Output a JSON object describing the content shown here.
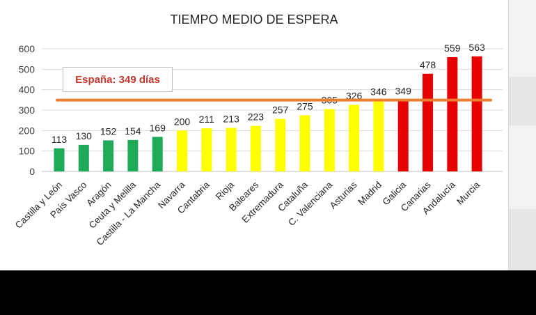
{
  "chart_data": {
    "type": "bar",
    "title": "TIEMPO MEDIO DE ESPERA",
    "xlabel": "",
    "ylabel": "",
    "ylim": [
      0,
      600
    ],
    "yticks": [
      0,
      100,
      200,
      300,
      400,
      500,
      600
    ],
    "grid": true,
    "categories": [
      "Castilla y León",
      "País Vasco",
      "Aragón",
      "Ceuta y Melilla",
      "Castilla - La Mancha",
      "Navarra",
      "Cantabria",
      "Rioja",
      "Baleares",
      "Extremadura",
      "Cataluña",
      "C. Valenciana",
      "Asturias",
      "Madrid",
      "Galicia",
      "Canarias",
      "Andalucía",
      "Murcia"
    ],
    "values": [
      113,
      130,
      152,
      154,
      169,
      200,
      211,
      213,
      223,
      257,
      275,
      305,
      326,
      346,
      349,
      478,
      559,
      563
    ],
    "bar_colors": [
      "#1faa59",
      "#1faa59",
      "#1faa59",
      "#1faa59",
      "#1faa59",
      "#ffff00",
      "#ffff00",
      "#ffff00",
      "#ffff00",
      "#ffff00",
      "#ffff00",
      "#ffff00",
      "#ffff00",
      "#ffff00",
      "#e60000",
      "#e60000",
      "#e60000",
      "#e60000"
    ],
    "reference_line": {
      "value": 349,
      "label": "España: 349 días",
      "color": "#ed7d31"
    }
  },
  "colors": {
    "grid": "#d9d9d9",
    "axis": "#bfbfbf",
    "label_text": "#c0392b"
  }
}
